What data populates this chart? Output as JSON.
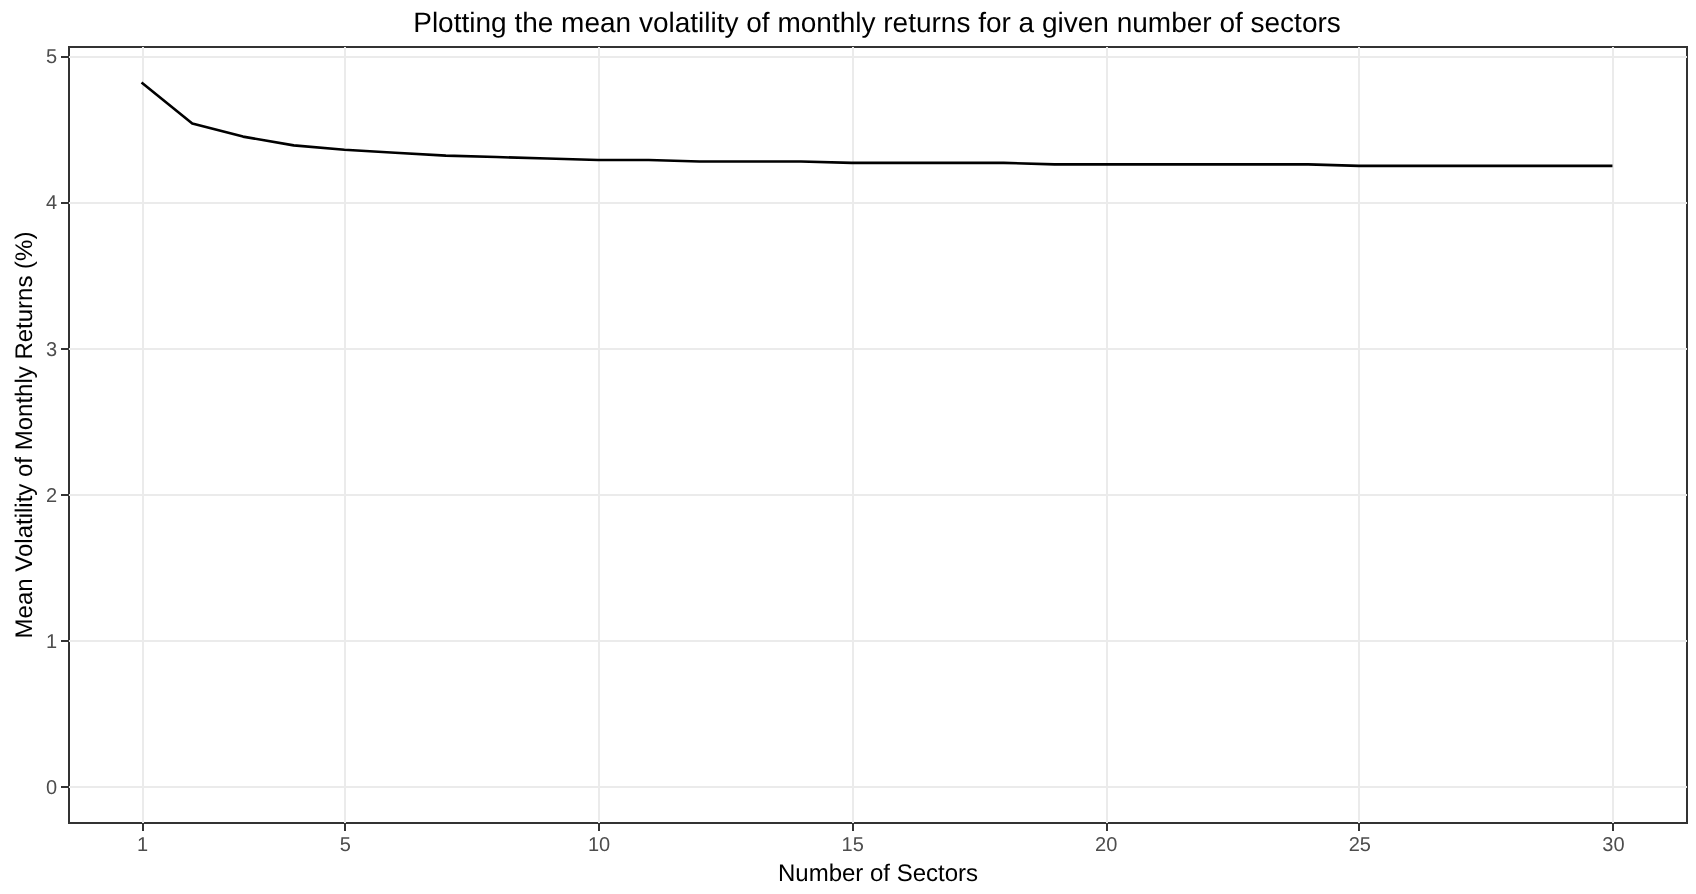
{
  "chart_data": {
    "type": "line",
    "title": "Plotting the mean volatility of monthly returns for a given number of sectors",
    "xlabel": "Number of Sectors",
    "ylabel": "Mean Volatility of Monthly Returns (%)",
    "x": [
      1,
      2,
      3,
      4,
      5,
      6,
      7,
      8,
      9,
      10,
      11,
      12,
      13,
      14,
      15,
      16,
      17,
      18,
      19,
      20,
      21,
      22,
      23,
      24,
      25,
      26,
      27,
      28,
      29,
      30
    ],
    "series": [
      {
        "color": "#000000",
        "values": [
          4.82,
          4.54,
          4.45,
          4.39,
          4.36,
          4.34,
          4.32,
          4.31,
          4.3,
          4.29,
          4.29,
          4.28,
          4.28,
          4.28,
          4.27,
          4.27,
          4.27,
          4.27,
          4.26,
          4.26,
          4.26,
          4.26,
          4.26,
          4.26,
          4.25,
          4.25,
          4.25,
          4.25,
          4.25,
          4.25
        ]
      }
    ],
    "xlim": [
      -0.45,
      31.45
    ],
    "ylim": [
      -0.24,
      5.07
    ],
    "xticks": [
      1,
      5,
      10,
      15,
      20,
      25,
      30
    ],
    "yticks": [
      0,
      1,
      2,
      3,
      4,
      5
    ],
    "grid": true,
    "marker": "none",
    "line_style": "solid"
  }
}
